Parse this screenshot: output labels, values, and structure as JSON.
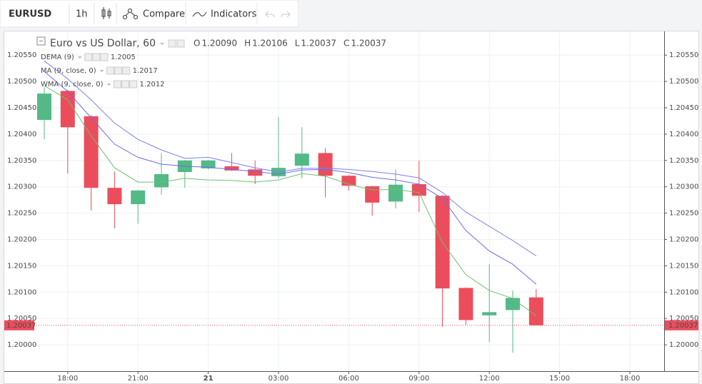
{
  "toolbar": {
    "symbol": "EURUSD",
    "interval": "1h",
    "compare": "Compare",
    "indicators": "Indicators"
  },
  "chart_data": {
    "type": "candlestick",
    "title": "Euro vs US Dollar, 60",
    "ohlc": [
      {
        "key": "O",
        "value": "1.20090"
      },
      {
        "key": "H",
        "value": "1.20106"
      },
      {
        "key": "L",
        "value": "1.20037"
      },
      {
        "key": "C",
        "value": "1.20037"
      }
    ],
    "categories": [
      null,
      "18:00",
      null,
      null,
      "21:00",
      null,
      null,
      "21",
      null,
      null,
      "03:00",
      null,
      null,
      "06:00",
      null,
      null,
      "09:00",
      null,
      null,
      "12:00",
      null,
      null,
      "15:00",
      null,
      null,
      "18:00",
      null
    ],
    "open": [
      1.20427,
      1.20482,
      1.20434,
      1.20298,
      1.20267,
      1.20299,
      1.20328,
      1.20335,
      1.20339,
      1.20333,
      1.2032,
      1.2034,
      1.20364,
      1.20321,
      1.20301,
      1.20272,
      1.20305,
      1.20283,
      1.20108,
      1.20056,
      1.20066,
      1.2009,
      null,
      null,
      null,
      null,
      null
    ],
    "high": [
      1.20489,
      1.20484,
      1.20436,
      1.20329,
      1.20294,
      1.20363,
      1.20351,
      1.20351,
      1.20364,
      1.2035,
      1.20432,
      1.20413,
      1.20374,
      1.20322,
      1.20302,
      1.20333,
      1.2035,
      1.20284,
      1.20109,
      1.20153,
      1.20103,
      1.20106,
      null,
      null,
      null,
      null,
      null
    ],
    "low": [
      1.2039,
      1.20325,
      1.20255,
      1.20221,
      1.2023,
      1.20285,
      1.20298,
      1.20333,
      1.2033,
      1.20305,
      1.20316,
      1.20316,
      1.2028,
      1.20293,
      1.20245,
      1.20259,
      1.20252,
      1.20034,
      1.20038,
      1.20005,
      1.19985,
      1.20037,
      null,
      null,
      null,
      null,
      null
    ],
    "close": [
      1.20477,
      1.20413,
      1.20298,
      1.20267,
      1.20293,
      1.20324,
      1.2035,
      1.2035,
      1.20331,
      1.20321,
      1.20336,
      1.20363,
      1.20321,
      1.20302,
      1.2027,
      1.20304,
      1.20283,
      1.20107,
      1.20047,
      1.20062,
      1.20089,
      1.20037,
      null,
      null,
      null,
      null,
      null
    ],
    "up_color": "#53b987",
    "down_color": "#eb4d5c",
    "series": [
      {
        "name": "DEMA (9)",
        "last_label": "1.2005",
        "color": "#6fbf6f",
        "label_color": "#1a8f1a",
        "values": [
          1.20492,
          1.20465,
          1.20397,
          1.20336,
          1.20309,
          1.20309,
          1.20316,
          1.20313,
          1.20312,
          1.20309,
          1.20313,
          1.20325,
          1.2032,
          1.20305,
          1.20294,
          1.20295,
          1.20289,
          1.20194,
          1.20133,
          1.20103,
          1.20088,
          1.20055,
          null,
          null,
          null,
          null,
          null
        ]
      },
      {
        "name": "MA (9, close, 0)",
        "last_label": "1.2017",
        "color": "#7b7fef",
        "label_color": "#1e1ec8",
        "values": [
          1.20539,
          1.20505,
          1.20465,
          1.20421,
          1.2039,
          1.2037,
          1.20354,
          1.20356,
          1.20346,
          1.20336,
          1.20328,
          1.20335,
          1.20335,
          1.20333,
          1.20329,
          1.20324,
          1.20317,
          1.20289,
          1.20252,
          1.20225,
          1.20198,
          1.20169,
          null,
          null,
          null,
          null,
          null
        ]
      },
      {
        "name": "WMA (9, close, 0)",
        "last_label": "1.2012",
        "color": "#6c6ce6",
        "label_color": "#1e1ec8",
        "values": [
          1.20519,
          1.20481,
          1.20431,
          1.20381,
          1.20356,
          1.20343,
          1.20339,
          1.20337,
          1.20333,
          1.20329,
          1.20324,
          1.20332,
          1.20333,
          1.20327,
          1.20318,
          1.20313,
          1.20305,
          1.20278,
          1.20217,
          1.20178,
          1.20153,
          1.20115,
          null,
          null,
          null,
          null,
          null
        ]
      }
    ],
    "ylim": [
      1.1995,
      1.20595
    ],
    "yticks": [
      {
        "value": 1.2,
        "label": "1.20000"
      },
      {
        "value": 1.2005,
        "label": "1.20050"
      },
      {
        "value": 1.201,
        "label": "1.20100"
      },
      {
        "value": 1.2015,
        "label": "1.20150"
      },
      {
        "value": 1.202,
        "label": "1.20200"
      },
      {
        "value": 1.2025,
        "label": "1.20250"
      },
      {
        "value": 1.203,
        "label": "1.20300"
      },
      {
        "value": 1.2035,
        "label": "1.20350"
      },
      {
        "value": 1.204,
        "label": "1.20400"
      },
      {
        "value": 1.2045,
        "label": "1.20450"
      },
      {
        "value": 1.205,
        "label": "1.20500"
      },
      {
        "value": 1.2055,
        "label": "1.20550"
      }
    ],
    "grid": true
  }
}
